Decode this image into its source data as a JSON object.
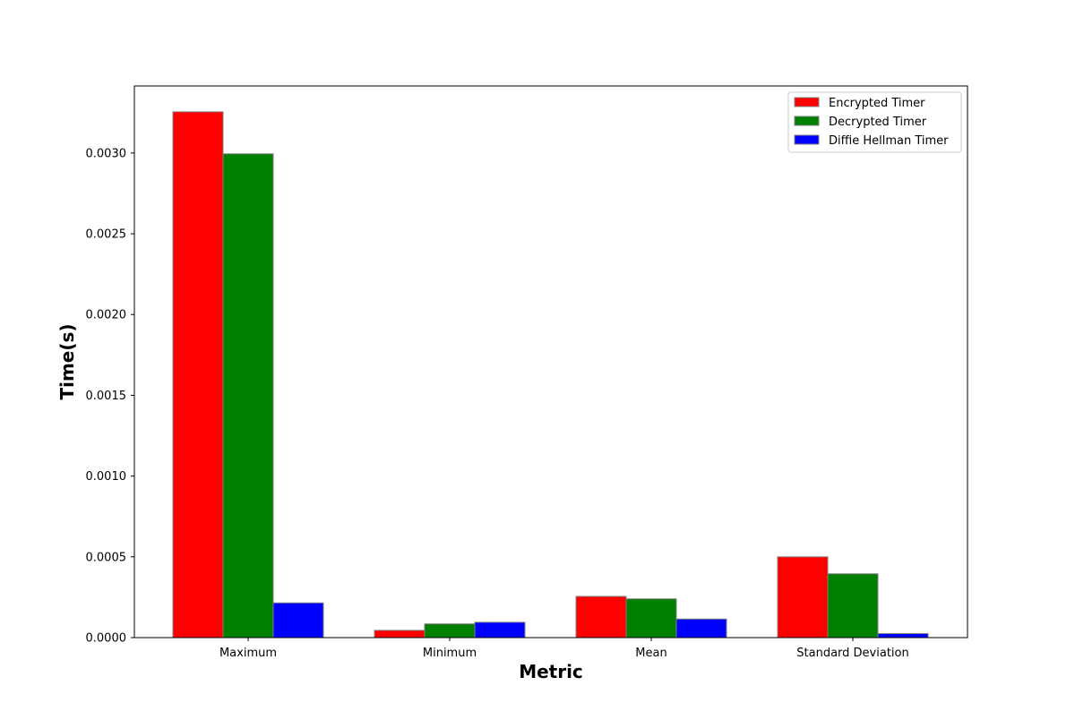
{
  "chart_data": {
    "type": "bar",
    "title": "",
    "xlabel": "Metric",
    "ylabel": "Time(s)",
    "categories": [
      "Maximum",
      "Minimum",
      "Mean",
      "Standard Deviation"
    ],
    "series": [
      {
        "name": "Encrypted Timer",
        "color": "#ff0000",
        "values": [
          0.003255,
          4.5e-05,
          0.000255,
          0.0005
        ]
      },
      {
        "name": "Decrypted Timer",
        "color": "#008000",
        "values": [
          0.002995,
          8.5e-05,
          0.00024,
          0.000395
        ]
      },
      {
        "name": "Diffie Hellman Timer",
        "color": "#0000ff",
        "values": [
          0.000215,
          9.5e-05,
          0.000115,
          2.5e-05
        ]
      }
    ],
    "ylim": [
      0,
      0.003415
    ],
    "yticks": [
      "0.0000",
      "0.0005",
      "0.0010",
      "0.0015",
      "0.0020",
      "0.0025",
      "0.0030"
    ],
    "grid": false,
    "legend_position": "top-right",
    "bar_edge_color": "#808080"
  }
}
